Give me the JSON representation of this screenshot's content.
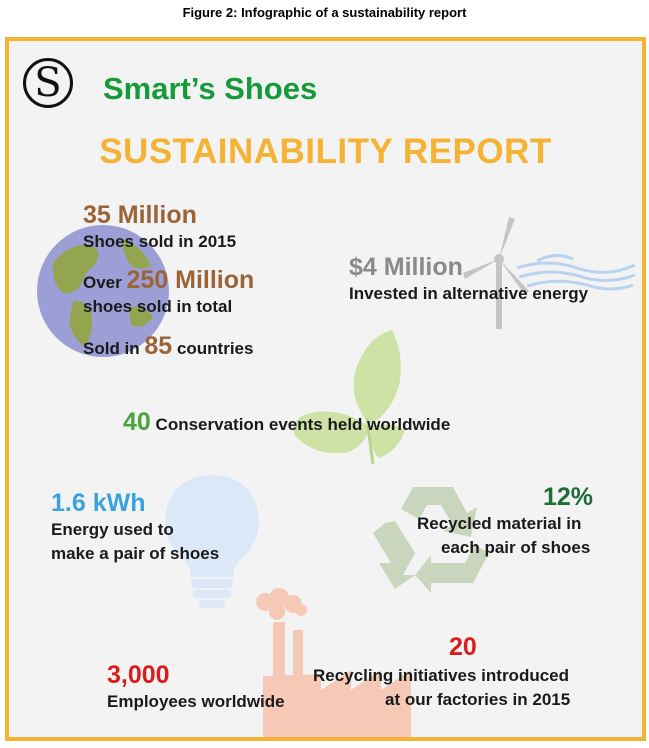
{
  "caption": "Figure 2: Infographic of a sustainability report",
  "logo": {
    "letter": "S",
    "brand": "Smart’s Shoes"
  },
  "report_title": "SUSTAINABILITY REPORT",
  "stats": {
    "shoes_2015": {
      "value": "35 Million",
      "label": "Shoes sold in 2015"
    },
    "shoes_total": {
      "prefix": "Over",
      "value": "250 Million",
      "label": "shoes sold in total"
    },
    "countries": {
      "prefix": "Sold in",
      "value": "85",
      "suffix": "countries"
    },
    "energy_investment": {
      "value": "$4 Million",
      "label": "Invested in alternative energy"
    },
    "conservation": {
      "value": "40",
      "label": "Conservation events held worldwide"
    },
    "energy_per_pair": {
      "value": "1.6 kWh",
      "line1": "Energy used to",
      "line2": "make a pair of shoes"
    },
    "recycled": {
      "value": "12%",
      "line1": "Recycled material in",
      "line2": "each pair of shoes"
    },
    "recycling": {
      "value": "20",
      "line1": "Recycling initiatives introduced",
      "line2": "at our factories in 2015"
    },
    "employees": {
      "value": "3,000",
      "label": "Employees worldwide"
    }
  },
  "colors": {
    "frame": "#f5b335",
    "brand_green": "#169a3a",
    "brown": "#9a6338",
    "gray": "#8a8a8a",
    "conservation_green": "#4aa33b",
    "energy_blue": "#3aa3dc",
    "recycled_green": "#1f6e3a",
    "red": "#d91c1c"
  },
  "icons": [
    "globe-icon",
    "wind-turbine-icon",
    "butterfly-icon",
    "lightbulb-icon",
    "recycle-icon",
    "factory-icon"
  ]
}
